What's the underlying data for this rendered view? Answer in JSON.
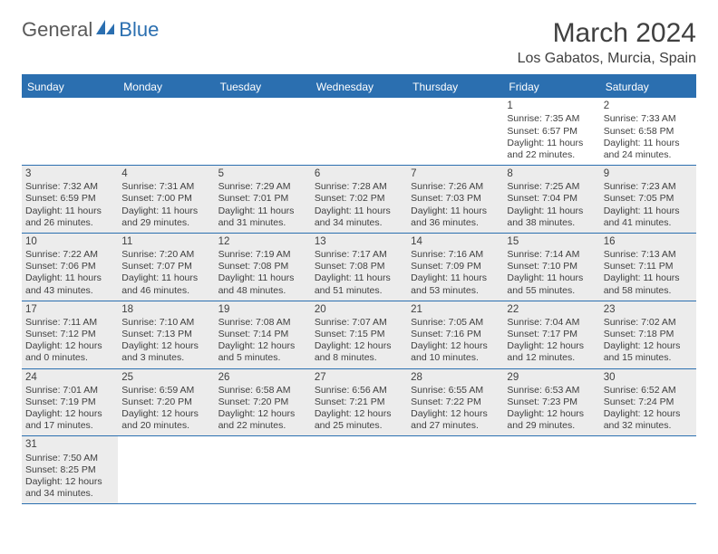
{
  "logo": {
    "part1": "General",
    "part2": "Blue"
  },
  "title": "March 2024",
  "location": "Los Gabatos, Murcia, Spain",
  "colors": {
    "brand": "#2b6fb0",
    "text": "#404040",
    "shade": "#ececec",
    "bg": "#ffffff"
  },
  "day_names": [
    "Sunday",
    "Monday",
    "Tuesday",
    "Wednesday",
    "Thursday",
    "Friday",
    "Saturday"
  ],
  "weeks": [
    [
      {
        "n": "",
        "sr": "",
        "ss": "",
        "dl1": "",
        "dl2": "",
        "shade": false
      },
      {
        "n": "",
        "sr": "",
        "ss": "",
        "dl1": "",
        "dl2": "",
        "shade": false
      },
      {
        "n": "",
        "sr": "",
        "ss": "",
        "dl1": "",
        "dl2": "",
        "shade": false
      },
      {
        "n": "",
        "sr": "",
        "ss": "",
        "dl1": "",
        "dl2": "",
        "shade": false
      },
      {
        "n": "",
        "sr": "",
        "ss": "",
        "dl1": "",
        "dl2": "",
        "shade": false
      },
      {
        "n": "1",
        "sr": "Sunrise: 7:35 AM",
        "ss": "Sunset: 6:57 PM",
        "dl1": "Daylight: 11 hours",
        "dl2": "and 22 minutes.",
        "shade": false
      },
      {
        "n": "2",
        "sr": "Sunrise: 7:33 AM",
        "ss": "Sunset: 6:58 PM",
        "dl1": "Daylight: 11 hours",
        "dl2": "and 24 minutes.",
        "shade": false
      }
    ],
    [
      {
        "n": "3",
        "sr": "Sunrise: 7:32 AM",
        "ss": "Sunset: 6:59 PM",
        "dl1": "Daylight: 11 hours",
        "dl2": "and 26 minutes.",
        "shade": true
      },
      {
        "n": "4",
        "sr": "Sunrise: 7:31 AM",
        "ss": "Sunset: 7:00 PM",
        "dl1": "Daylight: 11 hours",
        "dl2": "and 29 minutes.",
        "shade": true
      },
      {
        "n": "5",
        "sr": "Sunrise: 7:29 AM",
        "ss": "Sunset: 7:01 PM",
        "dl1": "Daylight: 11 hours",
        "dl2": "and 31 minutes.",
        "shade": true
      },
      {
        "n": "6",
        "sr": "Sunrise: 7:28 AM",
        "ss": "Sunset: 7:02 PM",
        "dl1": "Daylight: 11 hours",
        "dl2": "and 34 minutes.",
        "shade": true
      },
      {
        "n": "7",
        "sr": "Sunrise: 7:26 AM",
        "ss": "Sunset: 7:03 PM",
        "dl1": "Daylight: 11 hours",
        "dl2": "and 36 minutes.",
        "shade": true
      },
      {
        "n": "8",
        "sr": "Sunrise: 7:25 AM",
        "ss": "Sunset: 7:04 PM",
        "dl1": "Daylight: 11 hours",
        "dl2": "and 38 minutes.",
        "shade": true
      },
      {
        "n": "9",
        "sr": "Sunrise: 7:23 AM",
        "ss": "Sunset: 7:05 PM",
        "dl1": "Daylight: 11 hours",
        "dl2": "and 41 minutes.",
        "shade": true
      }
    ],
    [
      {
        "n": "10",
        "sr": "Sunrise: 7:22 AM",
        "ss": "Sunset: 7:06 PM",
        "dl1": "Daylight: 11 hours",
        "dl2": "and 43 minutes.",
        "shade": true
      },
      {
        "n": "11",
        "sr": "Sunrise: 7:20 AM",
        "ss": "Sunset: 7:07 PM",
        "dl1": "Daylight: 11 hours",
        "dl2": "and 46 minutes.",
        "shade": true
      },
      {
        "n": "12",
        "sr": "Sunrise: 7:19 AM",
        "ss": "Sunset: 7:08 PM",
        "dl1": "Daylight: 11 hours",
        "dl2": "and 48 minutes.",
        "shade": true
      },
      {
        "n": "13",
        "sr": "Sunrise: 7:17 AM",
        "ss": "Sunset: 7:08 PM",
        "dl1": "Daylight: 11 hours",
        "dl2": "and 51 minutes.",
        "shade": true
      },
      {
        "n": "14",
        "sr": "Sunrise: 7:16 AM",
        "ss": "Sunset: 7:09 PM",
        "dl1": "Daylight: 11 hours",
        "dl2": "and 53 minutes.",
        "shade": true
      },
      {
        "n": "15",
        "sr": "Sunrise: 7:14 AM",
        "ss": "Sunset: 7:10 PM",
        "dl1": "Daylight: 11 hours",
        "dl2": "and 55 minutes.",
        "shade": true
      },
      {
        "n": "16",
        "sr": "Sunrise: 7:13 AM",
        "ss": "Sunset: 7:11 PM",
        "dl1": "Daylight: 11 hours",
        "dl2": "and 58 minutes.",
        "shade": true
      }
    ],
    [
      {
        "n": "17",
        "sr": "Sunrise: 7:11 AM",
        "ss": "Sunset: 7:12 PM",
        "dl1": "Daylight: 12 hours",
        "dl2": "and 0 minutes.",
        "shade": true
      },
      {
        "n": "18",
        "sr": "Sunrise: 7:10 AM",
        "ss": "Sunset: 7:13 PM",
        "dl1": "Daylight: 12 hours",
        "dl2": "and 3 minutes.",
        "shade": true
      },
      {
        "n": "19",
        "sr": "Sunrise: 7:08 AM",
        "ss": "Sunset: 7:14 PM",
        "dl1": "Daylight: 12 hours",
        "dl2": "and 5 minutes.",
        "shade": true
      },
      {
        "n": "20",
        "sr": "Sunrise: 7:07 AM",
        "ss": "Sunset: 7:15 PM",
        "dl1": "Daylight: 12 hours",
        "dl2": "and 8 minutes.",
        "shade": true
      },
      {
        "n": "21",
        "sr": "Sunrise: 7:05 AM",
        "ss": "Sunset: 7:16 PM",
        "dl1": "Daylight: 12 hours",
        "dl2": "and 10 minutes.",
        "shade": true
      },
      {
        "n": "22",
        "sr": "Sunrise: 7:04 AM",
        "ss": "Sunset: 7:17 PM",
        "dl1": "Daylight: 12 hours",
        "dl2": "and 12 minutes.",
        "shade": true
      },
      {
        "n": "23",
        "sr": "Sunrise: 7:02 AM",
        "ss": "Sunset: 7:18 PM",
        "dl1": "Daylight: 12 hours",
        "dl2": "and 15 minutes.",
        "shade": true
      }
    ],
    [
      {
        "n": "24",
        "sr": "Sunrise: 7:01 AM",
        "ss": "Sunset: 7:19 PM",
        "dl1": "Daylight: 12 hours",
        "dl2": "and 17 minutes.",
        "shade": true
      },
      {
        "n": "25",
        "sr": "Sunrise: 6:59 AM",
        "ss": "Sunset: 7:20 PM",
        "dl1": "Daylight: 12 hours",
        "dl2": "and 20 minutes.",
        "shade": true
      },
      {
        "n": "26",
        "sr": "Sunrise: 6:58 AM",
        "ss": "Sunset: 7:20 PM",
        "dl1": "Daylight: 12 hours",
        "dl2": "and 22 minutes.",
        "shade": true
      },
      {
        "n": "27",
        "sr": "Sunrise: 6:56 AM",
        "ss": "Sunset: 7:21 PM",
        "dl1": "Daylight: 12 hours",
        "dl2": "and 25 minutes.",
        "shade": true
      },
      {
        "n": "28",
        "sr": "Sunrise: 6:55 AM",
        "ss": "Sunset: 7:22 PM",
        "dl1": "Daylight: 12 hours",
        "dl2": "and 27 minutes.",
        "shade": true
      },
      {
        "n": "29",
        "sr": "Sunrise: 6:53 AM",
        "ss": "Sunset: 7:23 PM",
        "dl1": "Daylight: 12 hours",
        "dl2": "and 29 minutes.",
        "shade": true
      },
      {
        "n": "30",
        "sr": "Sunrise: 6:52 AM",
        "ss": "Sunset: 7:24 PM",
        "dl1": "Daylight: 12 hours",
        "dl2": "and 32 minutes.",
        "shade": true
      }
    ],
    [
      {
        "n": "31",
        "sr": "Sunrise: 7:50 AM",
        "ss": "Sunset: 8:25 PM",
        "dl1": "Daylight: 12 hours",
        "dl2": "and 34 minutes.",
        "shade": true
      },
      {
        "n": "",
        "sr": "",
        "ss": "",
        "dl1": "",
        "dl2": "",
        "shade": false
      },
      {
        "n": "",
        "sr": "",
        "ss": "",
        "dl1": "",
        "dl2": "",
        "shade": false
      },
      {
        "n": "",
        "sr": "",
        "ss": "",
        "dl1": "",
        "dl2": "",
        "shade": false
      },
      {
        "n": "",
        "sr": "",
        "ss": "",
        "dl1": "",
        "dl2": "",
        "shade": false
      },
      {
        "n": "",
        "sr": "",
        "ss": "",
        "dl1": "",
        "dl2": "",
        "shade": false
      },
      {
        "n": "",
        "sr": "",
        "ss": "",
        "dl1": "",
        "dl2": "",
        "shade": false
      }
    ]
  ]
}
